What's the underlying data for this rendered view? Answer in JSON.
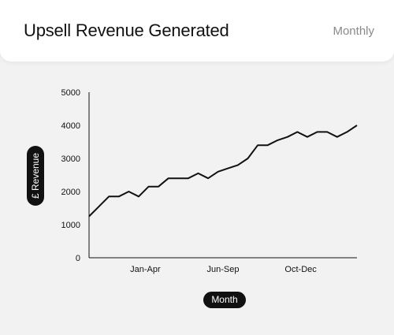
{
  "header": {
    "title": "Upsell Revenue Generated",
    "period": "Monthly"
  },
  "chart_data": {
    "type": "line",
    "title": "Upsell Revenue Generated",
    "xlabel": "Month",
    "ylabel": "£ Revenue",
    "ylim": [
      0,
      5000
    ],
    "yticks": [
      "0",
      "1000",
      "2000",
      "3000",
      "4000",
      "5000"
    ],
    "xticks": [
      "Jan-Apr",
      "Jun-Sep",
      "Oct-Dec"
    ],
    "grid": false,
    "line_color": "#111111",
    "series": [
      {
        "values": [
          1250,
          1550,
          1850,
          1850,
          2000,
          1850,
          2150,
          2150,
          2400,
          2400,
          2400,
          2550,
          2400,
          2600,
          2700,
          2800,
          3000,
          3400,
          3400,
          3550,
          3650,
          3800,
          3650,
          3800,
          3800,
          3650,
          3800,
          4000
        ]
      }
    ]
  }
}
